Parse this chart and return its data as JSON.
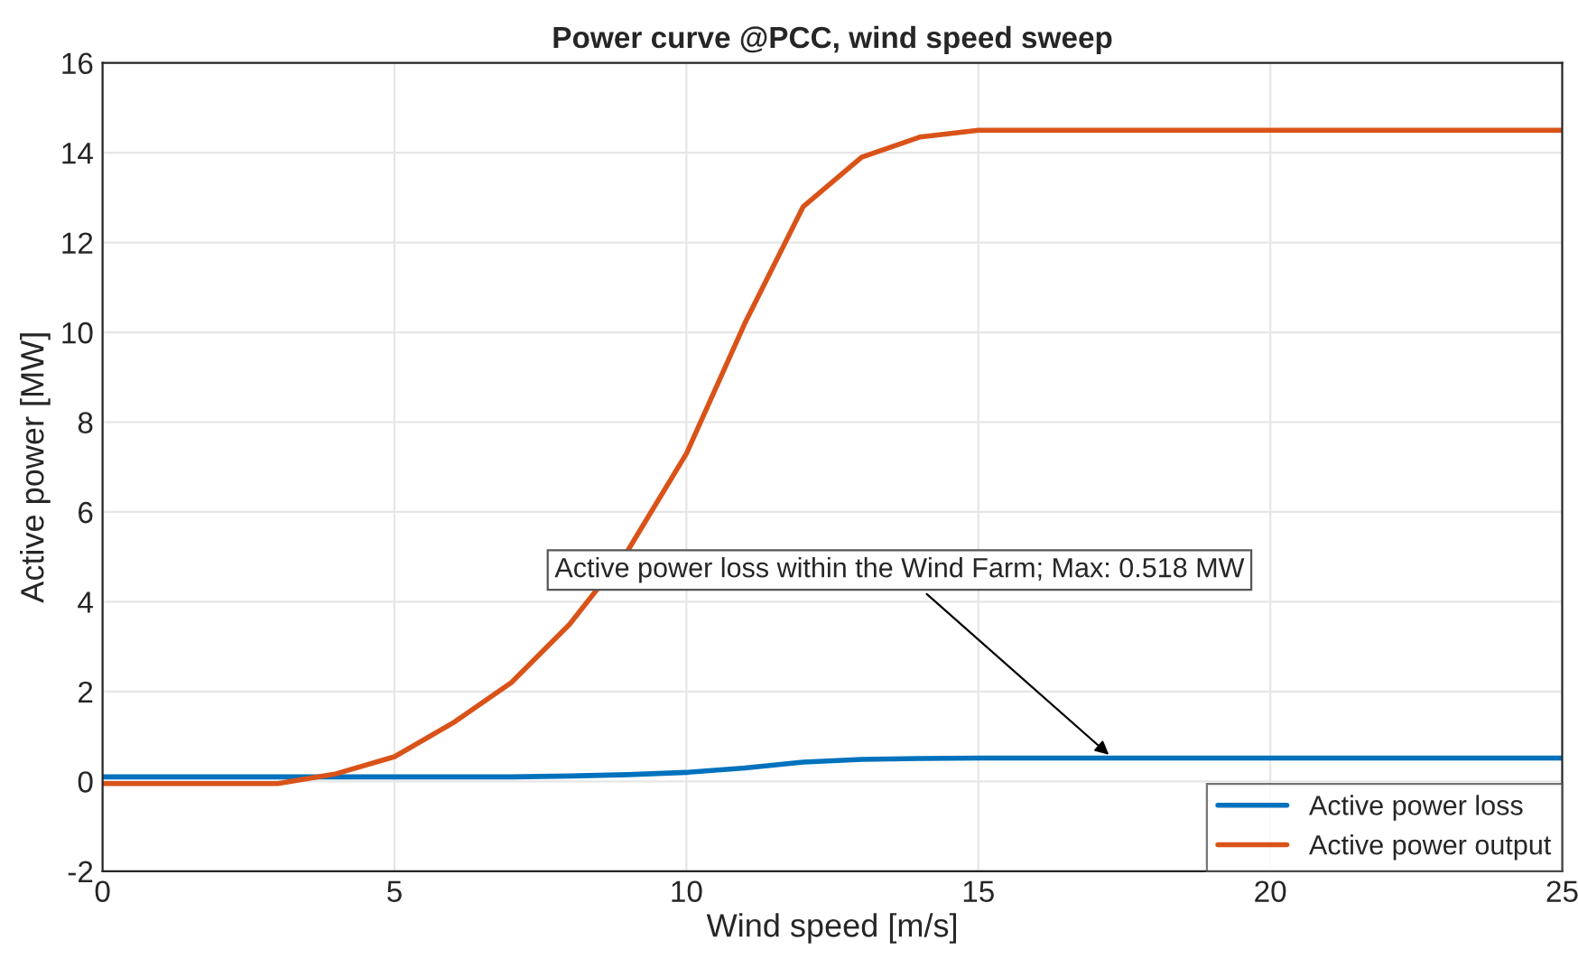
{
  "chart_data": {
    "type": "line",
    "title": "Power curve @PCC, wind speed sweep",
    "xlabel": "Wind speed [m/s]",
    "ylabel": "Active power [MW]",
    "x": [
      0,
      1,
      2,
      3,
      4,
      5,
      6,
      7,
      8,
      9,
      10,
      11,
      12,
      13,
      14,
      15,
      16,
      17,
      18,
      19,
      20,
      21,
      22,
      23,
      24,
      25
    ],
    "series": [
      {
        "name": "Active power loss",
        "color": "#0072bd",
        "values": [
          0.1,
          0.1,
          0.1,
          0.1,
          0.1,
          0.1,
          0.1,
          0.1,
          0.12,
          0.15,
          0.2,
          0.3,
          0.43,
          0.49,
          0.51,
          0.518,
          0.518,
          0.518,
          0.518,
          0.518,
          0.518,
          0.518,
          0.518,
          0.518,
          0.518,
          0.518
        ]
      },
      {
        "name": "Active power output",
        "color": "#d95319",
        "values": [
          -0.05,
          -0.05,
          -0.05,
          -0.05,
          0.17,
          0.55,
          1.3,
          2.2,
          3.5,
          5.15,
          7.3,
          10.2,
          12.8,
          13.9,
          14.35,
          14.5,
          14.5,
          14.5,
          14.5,
          14.5,
          14.5,
          14.5,
          14.5,
          14.5,
          14.5,
          14.5
        ]
      }
    ],
    "annotations": [
      {
        "text": "Active power loss within the Wind Farm; Max: 0.518 MW",
        "x": 17.3,
        "y": 0.518
      }
    ],
    "xlim": [
      0,
      25
    ],
    "ylim": [
      -2,
      16
    ],
    "xticks": [
      0,
      5,
      10,
      15,
      20,
      25
    ],
    "yticks": [
      -2,
      0,
      2,
      4,
      6,
      8,
      10,
      12,
      14,
      16
    ],
    "grid": true,
    "legend": "bottom right",
    "marker": "none",
    "line_style": "solid"
  }
}
